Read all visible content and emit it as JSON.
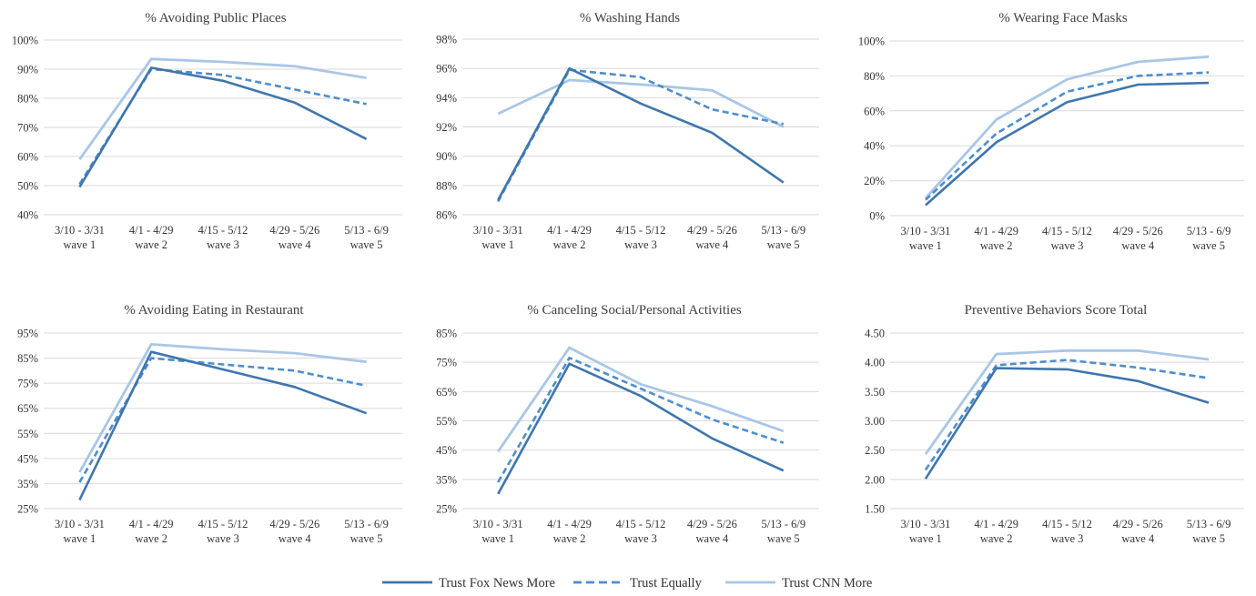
{
  "chart_data": [
    {
      "type": "line",
      "title": "% Avoiding Public Places",
      "categories": [
        [
          "3/10 - 3/31",
          "wave 1"
        ],
        [
          "4/1 - 4/29",
          "wave 2"
        ],
        [
          "4/15 - 5/12",
          "wave 3"
        ],
        [
          "4/29 - 5/26",
          "wave 4"
        ],
        [
          "5/13 - 6/9",
          "wave 5"
        ]
      ],
      "yticks": [
        "40%",
        "50%",
        "60%",
        "70%",
        "80%",
        "90%",
        "100%"
      ],
      "ylim": [
        40,
        100
      ],
      "series": [
        {
          "name": "Trust Fox News More",
          "values": [
            49.5,
            90.5,
            86,
            78.5,
            66
          ]
        },
        {
          "name": "Trust Equally",
          "values": [
            50.5,
            90,
            88,
            83,
            78
          ]
        },
        {
          "name": "Trust CNN More",
          "values": [
            59,
            93.5,
            92.5,
            91,
            87
          ]
        }
      ]
    },
    {
      "type": "line",
      "title": "% Washing Hands",
      "categories": [
        [
          "3/10 - 3/31",
          "wave 1"
        ],
        [
          "4/1 - 4/29",
          "wave 2"
        ],
        [
          "4/15 - 5/12",
          "wave 3"
        ],
        [
          "4/29 - 5/26",
          "wave 4"
        ],
        [
          "5/13 - 6/9",
          "wave 5"
        ]
      ],
      "yticks": [
        "86%",
        "88%",
        "90%",
        "92%",
        "94%",
        "96%",
        "98%"
      ],
      "ylim": [
        86,
        98
      ],
      "series": [
        {
          "name": "Trust Fox News More",
          "values": [
            87,
            96,
            93.6,
            91.6,
            88.2
          ]
        },
        {
          "name": "Trust Equally",
          "values": [
            86.9,
            95.9,
            95.4,
            93.2,
            92.2
          ]
        },
        {
          "name": "Trust CNN More",
          "values": [
            92.9,
            95.2,
            94.9,
            94.5,
            92
          ]
        }
      ]
    },
    {
      "type": "line",
      "title": "% Wearing Face Masks",
      "categories": [
        [
          "3/10 - 3/31",
          "wave 1"
        ],
        [
          "4/1 - 4/29",
          "wave 2"
        ],
        [
          "4/15 - 5/12",
          "wave 3"
        ],
        [
          "4/29 - 5/26",
          "wave 4"
        ],
        [
          "5/13 - 6/9",
          "wave 5"
        ]
      ],
      "yticks": [
        "0%",
        "20%",
        "40%",
        "60%",
        "80%",
        "100%"
      ],
      "ylim": [
        0,
        100
      ],
      "series": [
        {
          "name": "Trust Fox News More",
          "values": [
            6,
            42,
            65,
            75,
            76
          ]
        },
        {
          "name": "Trust Equally",
          "values": [
            9,
            47,
            71,
            80,
            82
          ]
        },
        {
          "name": "Trust CNN More",
          "values": [
            10,
            55,
            78,
            88,
            91
          ]
        }
      ]
    },
    {
      "type": "line",
      "title": "% Avoiding Eating in Restaurant",
      "categories": [
        [
          "3/10 - 3/31",
          "wave 1"
        ],
        [
          "4/1 - 4/29",
          "wave 2"
        ],
        [
          "4/15 - 5/12",
          "wave 3"
        ],
        [
          "4/29 - 5/26",
          "wave 4"
        ],
        [
          "5/13 - 6/9",
          "wave 5"
        ]
      ],
      "yticks": [
        "25%",
        "35%",
        "45%",
        "55%",
        "65%",
        "75%",
        "85%",
        "95%"
      ],
      "ylim": [
        25,
        95
      ],
      "series": [
        {
          "name": "Trust Fox News More",
          "values": [
            28.5,
            87.5,
            80.5,
            73.5,
            63
          ]
        },
        {
          "name": "Trust Equally",
          "values": [
            35.5,
            85,
            82.5,
            80,
            74
          ]
        },
        {
          "name": "Trust CNN More",
          "values": [
            39.5,
            90.5,
            88.5,
            87,
            83.5
          ]
        }
      ]
    },
    {
      "type": "line",
      "title": "% Canceling Social/Personal Activities",
      "categories": [
        [
          "3/10 - 3/31",
          "wave 1"
        ],
        [
          "4/1 - 4/29",
          "wave 2"
        ],
        [
          "4/15 - 5/12",
          "wave 3"
        ],
        [
          "4/29 - 5/26",
          "wave 4"
        ],
        [
          "5/13 - 6/9",
          "wave 5"
        ]
      ],
      "yticks": [
        "25%",
        "35%",
        "45%",
        "55%",
        "65%",
        "75%",
        "85%"
      ],
      "ylim": [
        25,
        85
      ],
      "series": [
        {
          "name": "Trust Fox News More",
          "values": [
            30,
            74.5,
            63.5,
            49,
            38
          ]
        },
        {
          "name": "Trust Equally",
          "values": [
            34,
            76.5,
            66,
            55.5,
            47.5
          ]
        },
        {
          "name": "Trust CNN More",
          "values": [
            44.5,
            80,
            67.5,
            60,
            51.5
          ]
        }
      ]
    },
    {
      "type": "line",
      "title": "Preventive Behaviors Score Total",
      "categories": [
        [
          "3/10 - 3/31",
          "wave 1"
        ],
        [
          "4/1 - 4/29",
          "wave 2"
        ],
        [
          "4/15 - 5/12",
          "wave 3"
        ],
        [
          "4/29 - 5/26",
          "wave 4"
        ],
        [
          "5/13 - 6/9",
          "wave 5"
        ]
      ],
      "yticks": [
        "1.50",
        "2.00",
        "2.50",
        "3.00",
        "3.50",
        "4.00",
        "4.50"
      ],
      "ylim": [
        1.5,
        4.5
      ],
      "series": [
        {
          "name": "Trust Fox News More",
          "values": [
            2.01,
            3.9,
            3.88,
            3.68,
            3.31
          ]
        },
        {
          "name": "Trust Equally",
          "values": [
            2.16,
            3.95,
            4.04,
            3.91,
            3.73
          ]
        },
        {
          "name": "Trust CNN More",
          "values": [
            2.43,
            4.14,
            4.2,
            4.2,
            4.05
          ]
        }
      ]
    }
  ],
  "legend": {
    "position": "bottom-center",
    "items": [
      {
        "label": "Trust Fox News More",
        "style": "solid",
        "color": "#3f76ad"
      },
      {
        "label": "Trust Equally",
        "style": "dashed",
        "color": "#4e8ecb"
      },
      {
        "label": "Trust CNN More",
        "style": "solid",
        "color": "#a9c6e6"
      }
    ]
  },
  "colors": {
    "fox": "#3f76ad",
    "equal": "#4e8ecb",
    "cnn": "#a9c6e6",
    "grid": "#d9d9d9"
  }
}
